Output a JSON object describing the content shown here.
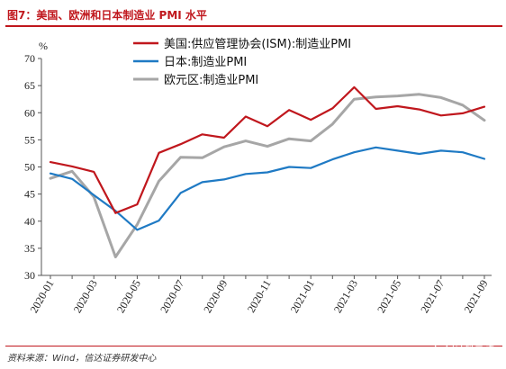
{
  "header": {
    "title": "图7：美国、欧洲和日本制造业 PMI 水平"
  },
  "footer": {
    "source": "资料来源：Wind，信达证券研发中心",
    "watermark": "宏观亮语"
  },
  "colors": {
    "us": "#c0171d",
    "japan": "#1f7ac4",
    "euro": "#a6a6a6",
    "accent": "#c0171d"
  },
  "chart_data": {
    "type": "line",
    "ylabel": "%",
    "ylim": [
      30,
      70
    ],
    "yticks": [
      30,
      35,
      40,
      45,
      50,
      55,
      60,
      65,
      70
    ],
    "x_tick_labels": [
      "2020-01",
      "2020-03",
      "2020-05",
      "2020-07",
      "2020-09",
      "2020-11",
      "2021-01",
      "2021-03",
      "2021-05",
      "2021-07",
      "2021-09"
    ],
    "x": [
      "2020-01",
      "2020-02",
      "2020-03",
      "2020-04",
      "2020-05",
      "2020-06",
      "2020-07",
      "2020-08",
      "2020-09",
      "2020-10",
      "2020-11",
      "2020-12",
      "2021-01",
      "2021-02",
      "2021-03",
      "2021-04",
      "2021-05",
      "2021-06",
      "2021-07",
      "2021-08",
      "2021-09"
    ],
    "grid": false,
    "legend_position": "top",
    "series": [
      {
        "key": "us",
        "name": "美国:供应管理协会(ISM):制造业PMI",
        "values": [
          50.9,
          50.1,
          49.1,
          41.5,
          43.1,
          52.6,
          54.2,
          56.0,
          55.4,
          59.3,
          57.5,
          60.5,
          58.7,
          60.8,
          64.7,
          60.7,
          61.2,
          60.6,
          59.5,
          59.9,
          61.1
        ]
      },
      {
        "key": "japan",
        "name": "日本:制造业PMI",
        "values": [
          48.8,
          47.8,
          44.8,
          41.9,
          38.4,
          40.1,
          45.2,
          47.2,
          47.7,
          48.7,
          49.0,
          50.0,
          49.8,
          51.4,
          52.7,
          53.6,
          53.0,
          52.4,
          53.0,
          52.7,
          51.5
        ]
      },
      {
        "key": "euro",
        "name": "欧元区:制造业PMI",
        "values": [
          47.9,
          49.2,
          44.5,
          33.4,
          39.4,
          47.4,
          51.8,
          51.7,
          53.7,
          54.8,
          53.8,
          55.2,
          54.8,
          57.9,
          62.5,
          62.9,
          63.1,
          63.4,
          62.8,
          61.4,
          58.6
        ]
      }
    ]
  }
}
